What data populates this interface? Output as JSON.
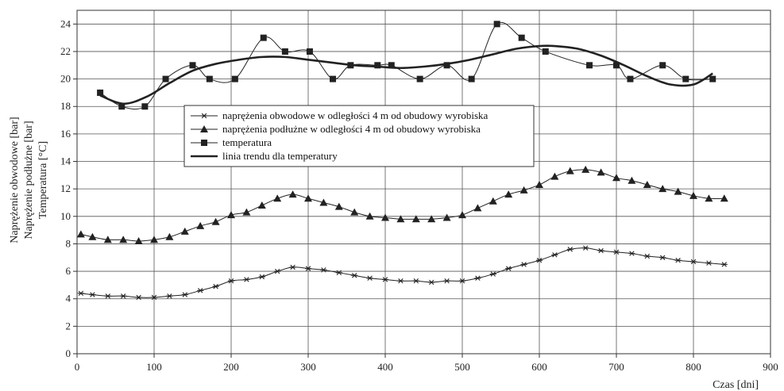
{
  "chart_data": {
    "type": "line",
    "title": "",
    "xlabel": "Czas [dni]",
    "ylabels": [
      "Naprężenie obwodowe [bar]",
      "Naprężenie podłużne [bar]",
      "Temperatura [°C]"
    ],
    "xlim": [
      0,
      900
    ],
    "ylim": [
      0,
      25
    ],
    "xticks": [
      0,
      100,
      200,
      300,
      400,
      500,
      600,
      700,
      800,
      900
    ],
    "yticks": [
      0,
      2,
      4,
      6,
      8,
      10,
      12,
      14,
      16,
      18,
      20,
      22,
      24
    ],
    "grid": true,
    "legend_position": "center-left",
    "series": [
      {
        "name": "naprężenia obwodowe w odległości 4 m od obudowy wyrobiska",
        "marker": "asterisk",
        "color": "#222222",
        "x": [
          5,
          20,
          40,
          60,
          80,
          100,
          120,
          140,
          160,
          180,
          200,
          220,
          240,
          260,
          280,
          300,
          320,
          340,
          360,
          380,
          400,
          420,
          440,
          460,
          480,
          500,
          520,
          540,
          560,
          580,
          600,
          620,
          640,
          660,
          680,
          700,
          720,
          740,
          760,
          780,
          800,
          820,
          840
        ],
        "y": [
          4.4,
          4.3,
          4.2,
          4.2,
          4.1,
          4.1,
          4.2,
          4.3,
          4.6,
          4.9,
          5.3,
          5.4,
          5.6,
          6.0,
          6.3,
          6.2,
          6.1,
          5.9,
          5.7,
          5.5,
          5.4,
          5.3,
          5.3,
          5.2,
          5.3,
          5.3,
          5.5,
          5.8,
          6.2,
          6.5,
          6.8,
          7.2,
          7.6,
          7.7,
          7.5,
          7.4,
          7.3,
          7.1,
          7.0,
          6.8,
          6.7,
          6.6,
          6.5
        ]
      },
      {
        "name": "naprężenia podłużne w odległości 4 m od obudowy wyrobiska",
        "marker": "triangle",
        "color": "#222222",
        "x": [
          5,
          20,
          40,
          60,
          80,
          100,
          120,
          140,
          160,
          180,
          200,
          220,
          240,
          260,
          280,
          300,
          320,
          340,
          360,
          380,
          400,
          420,
          440,
          460,
          480,
          500,
          520,
          540,
          560,
          580,
          600,
          620,
          640,
          660,
          680,
          700,
          720,
          740,
          760,
          780,
          800,
          820,
          840
        ],
        "y": [
          8.7,
          8.5,
          8.3,
          8.3,
          8.2,
          8.3,
          8.5,
          8.9,
          9.3,
          9.6,
          10.1,
          10.3,
          10.8,
          11.3,
          11.6,
          11.3,
          11.0,
          10.7,
          10.3,
          10.0,
          9.9,
          9.8,
          9.8,
          9.8,
          9.9,
          10.1,
          10.6,
          11.1,
          11.6,
          11.9,
          12.3,
          12.9,
          13.3,
          13.4,
          13.2,
          12.8,
          12.6,
          12.3,
          12.0,
          11.8,
          11.5,
          11.3,
          11.3
        ]
      },
      {
        "name": "temperatura",
        "marker": "square",
        "color": "#222222",
        "x": [
          30,
          58,
          88,
          115,
          150,
          172,
          205,
          242,
          270,
          302,
          332,
          355,
          390,
          408,
          445,
          480,
          512,
          545,
          577,
          608,
          665,
          700,
          718,
          760,
          790,
          825
        ],
        "y": [
          19,
          18,
          18,
          20,
          21,
          20,
          20,
          23,
          22,
          22,
          20,
          21,
          21,
          21,
          20,
          21,
          20,
          24,
          23,
          22,
          21,
          21,
          20,
          21,
          20,
          20
        ]
      },
      {
        "name": "linia trendu dla temperatury",
        "marker": "none",
        "color": "#222222",
        "x": [
          30,
          60,
          90,
          120,
          150,
          180,
          210,
          240,
          270,
          300,
          330,
          360,
          390,
          420,
          450,
          480,
          510,
          540,
          570,
          600,
          620,
          650,
          680,
          710,
          740,
          770,
          800,
          825
        ],
        "y": [
          18.8,
          18.2,
          18.7,
          19.7,
          20.6,
          21.1,
          21.4,
          21.6,
          21.6,
          21.4,
          21.2,
          21.0,
          20.9,
          20.8,
          20.9,
          21.1,
          21.4,
          21.8,
          22.2,
          22.4,
          22.4,
          22.2,
          21.7,
          21.0,
          20.2,
          19.6,
          19.6,
          20.4
        ]
      }
    ]
  }
}
